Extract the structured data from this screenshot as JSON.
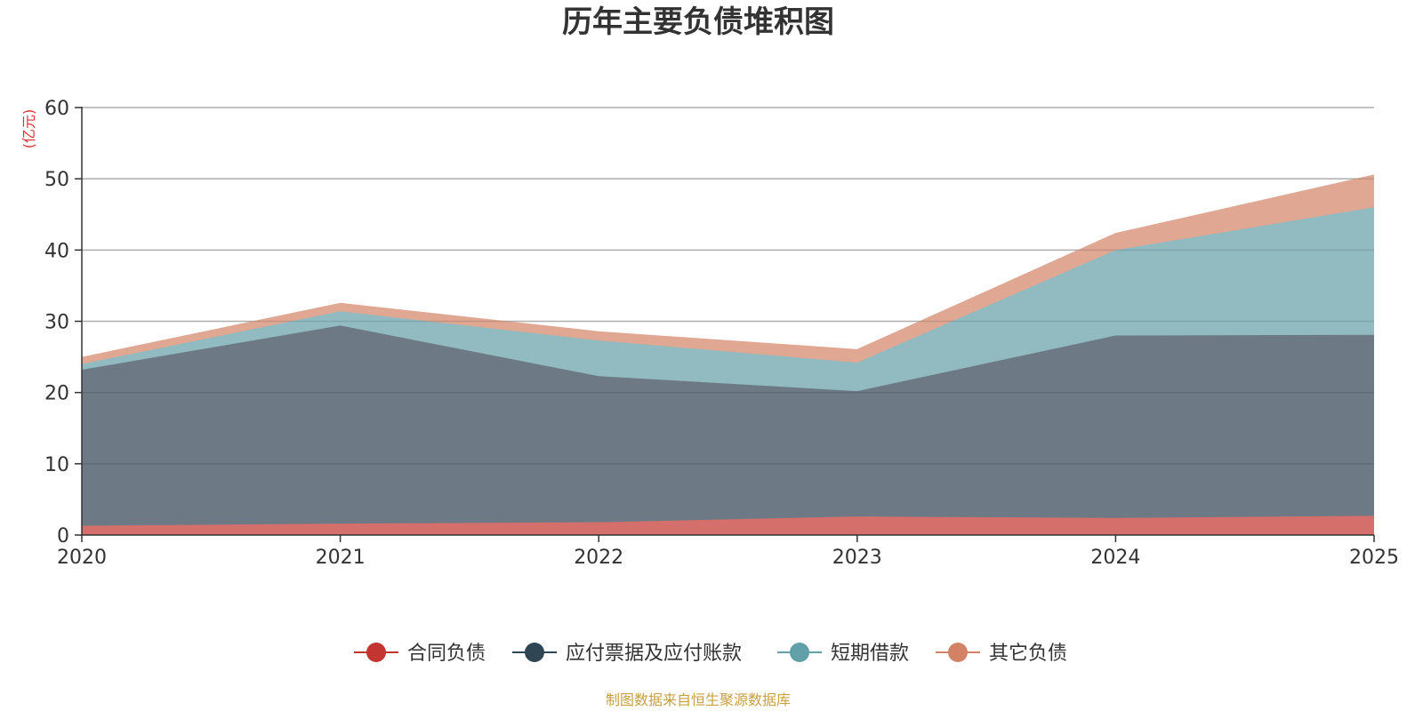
{
  "chart_data": {
    "type": "area",
    "stacked": true,
    "title": "历年主要负债堆积图",
    "unit_label": "(亿元)",
    "x": [
      "2020",
      "2021",
      "2022",
      "2023",
      "2024",
      "2025"
    ],
    "ylim": [
      0,
      60
    ],
    "yticks": [
      0,
      10,
      20,
      30,
      40,
      50,
      60
    ],
    "grid": true,
    "legend_position": "bottom",
    "series": [
      {
        "name": "合同负债",
        "color": "#c23531",
        "fill": "#d46f6c",
        "values": [
          1.3,
          1.6,
          1.8,
          2.6,
          2.4,
          2.7
        ]
      },
      {
        "name": "应付票据及应付账款",
        "color": "#2f4554",
        "fill": "#6d7a85",
        "values": [
          21.9,
          27.8,
          20.5,
          17.6,
          25.6,
          25.4
        ]
      },
      {
        "name": "短期借款",
        "color": "#61a0a8",
        "fill": "#91bbc1",
        "values": [
          0.8,
          2.0,
          5.0,
          4.0,
          12.0,
          17.9
        ]
      },
      {
        "name": "其它负债",
        "color": "#d48265",
        "fill": "#e0a792",
        "values": [
          0.9,
          1.1,
          1.2,
          1.8,
          2.3,
          4.5
        ]
      }
    ]
  },
  "footer": {
    "source": "制图数据来自恒生聚源数据库",
    "source_color": "#c8a040",
    "unit_color": "#e03030"
  }
}
